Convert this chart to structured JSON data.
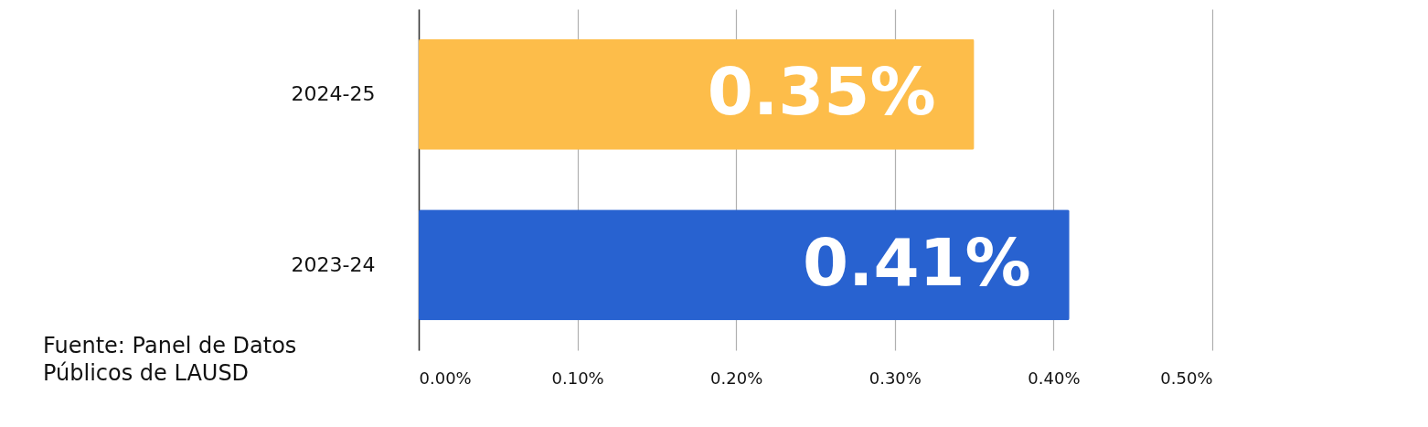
{
  "chart_data": {
    "type": "bar",
    "orientation": "horizontal",
    "categories": [
      "2024-25",
      "2023-24"
    ],
    "values": [
      0.35,
      0.41
    ],
    "colors": [
      "#fdbd4a",
      "#2862d0"
    ],
    "xlim": [
      0,
      0.5
    ],
    "xticks": [
      {
        "value": 0,
        "label": "0.00%"
      },
      {
        "value": 0.1,
        "label": "0.10%"
      },
      {
        "value": 0.2,
        "label": "0.20%"
      },
      {
        "value": 0.3,
        "label": "0.30%"
      },
      {
        "value": 0.4,
        "label": "0.40%"
      },
      {
        "value": 0.5,
        "label": "0.50%"
      }
    ],
    "grid": true,
    "value_labels": [
      "0.35%",
      "0.41%"
    ],
    "annotations": [
      "Fuente: Panel de Datos\nPúblicos de LAUSD"
    ]
  }
}
